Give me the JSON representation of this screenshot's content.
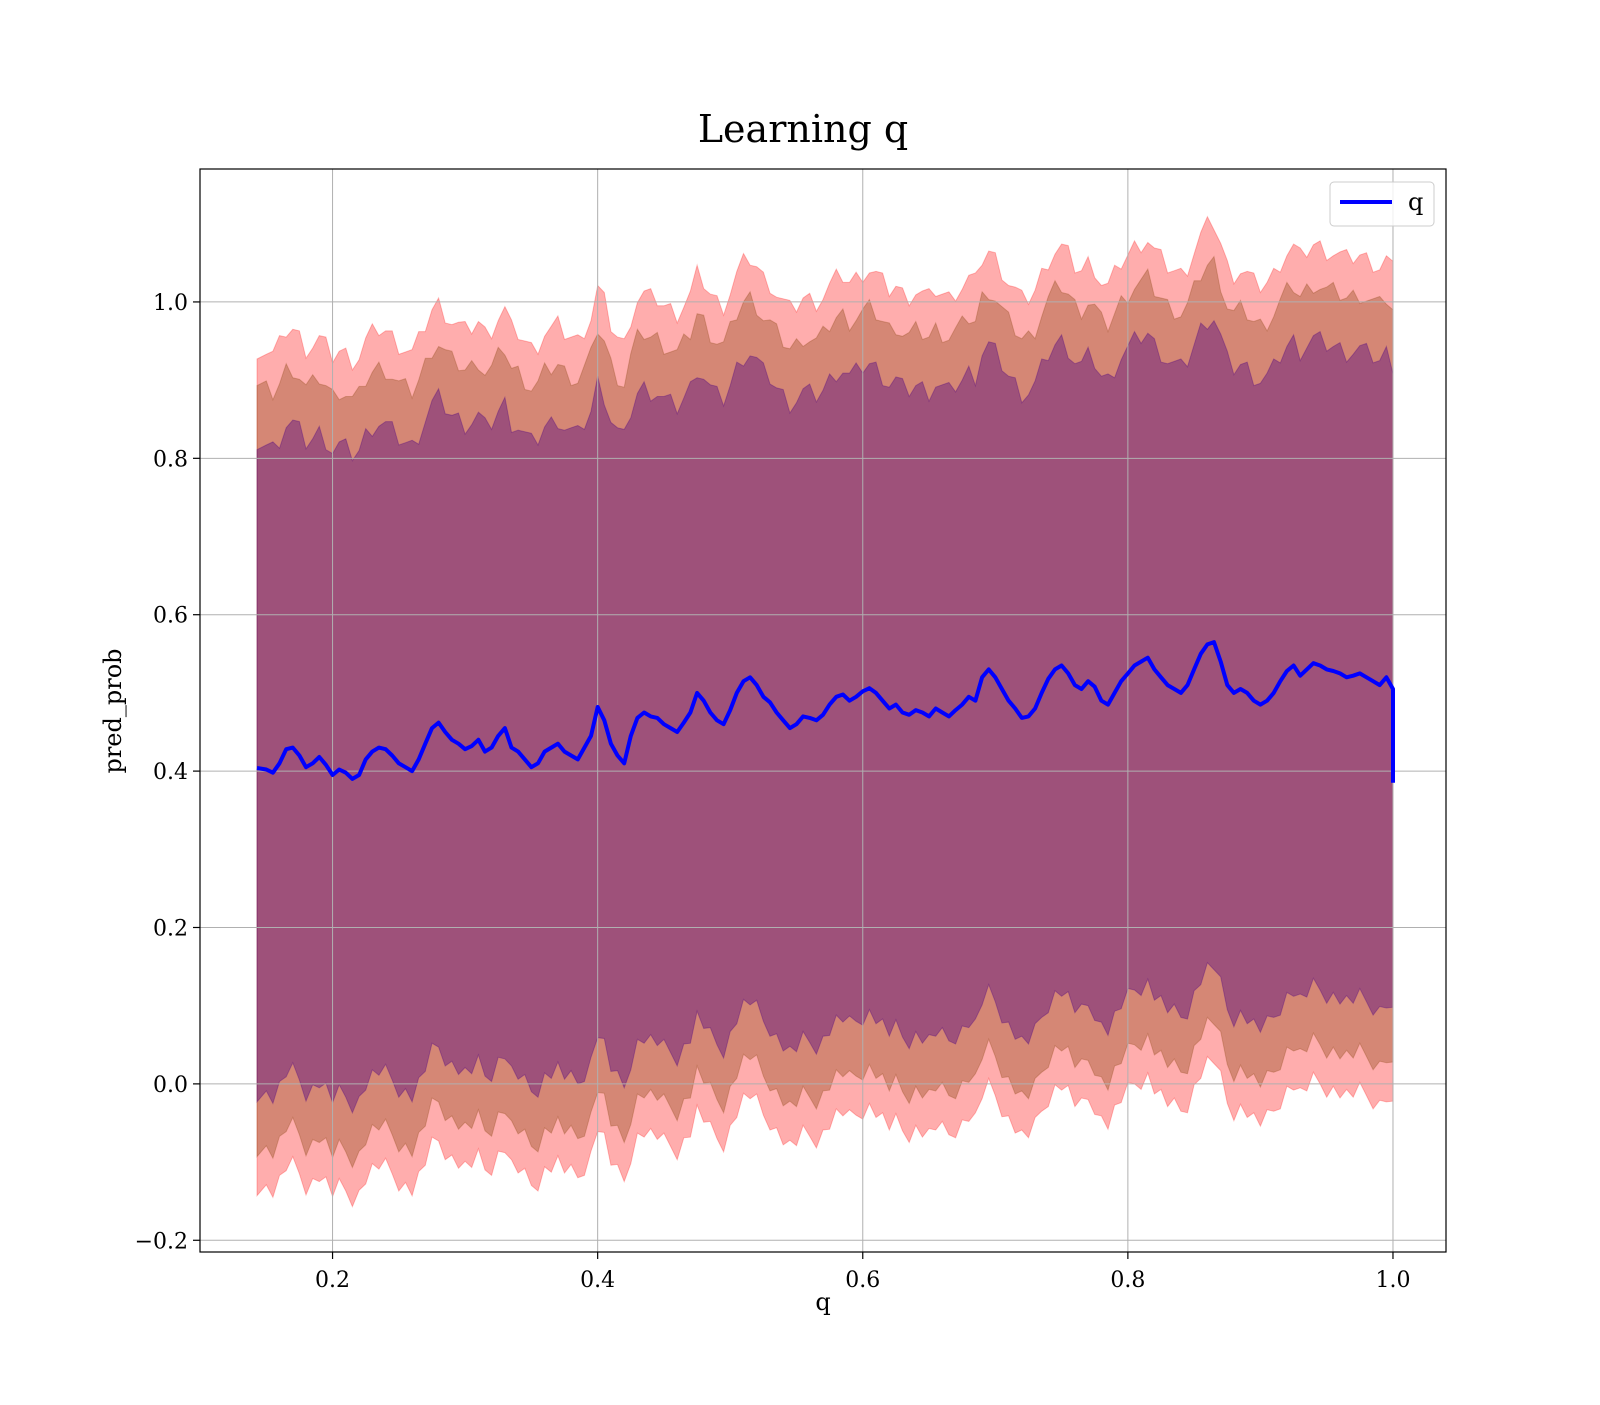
{
  "chart_data": {
    "type": "line",
    "title": "Learning q",
    "xlabel": "q",
    "ylabel": "pred_prob",
    "xlim": [
      0.1,
      1.04
    ],
    "ylim": [
      -0.215,
      1.17
    ],
    "xticks": [
      0.2,
      0.4,
      0.6,
      0.8,
      1.0
    ],
    "xtick_labels": [
      "0.2",
      "0.4",
      "0.6",
      "0.8",
      "1.0"
    ],
    "yticks": [
      -0.2,
      0.0,
      0.2,
      0.4,
      0.6,
      0.8,
      1.0
    ],
    "ytick_labels": [
      "−0.2",
      "0.0",
      "0.2",
      "0.4",
      "0.6",
      "0.8",
      "1.0"
    ],
    "grid": true,
    "legend": {
      "position": "top-right",
      "entries": [
        "q"
      ]
    },
    "series": [
      {
        "name": "q",
        "color": "#0000ff",
        "x": [
          0.143,
          0.15,
          0.155,
          0.16,
          0.165,
          0.17,
          0.175,
          0.18,
          0.185,
          0.19,
          0.195,
          0.2,
          0.205,
          0.21,
          0.215,
          0.22,
          0.225,
          0.23,
          0.235,
          0.24,
          0.245,
          0.25,
          0.255,
          0.26,
          0.265,
          0.27,
          0.275,
          0.28,
          0.285,
          0.29,
          0.295,
          0.3,
          0.305,
          0.31,
          0.315,
          0.32,
          0.325,
          0.33,
          0.335,
          0.34,
          0.345,
          0.35,
          0.355,
          0.36,
          0.365,
          0.37,
          0.375,
          0.38,
          0.385,
          0.39,
          0.395,
          0.4,
          0.405,
          0.41,
          0.415,
          0.42,
          0.425,
          0.43,
          0.435,
          0.44,
          0.445,
          0.45,
          0.455,
          0.46,
          0.465,
          0.47,
          0.475,
          0.48,
          0.485,
          0.49,
          0.495,
          0.5,
          0.505,
          0.51,
          0.515,
          0.52,
          0.525,
          0.53,
          0.535,
          0.54,
          0.545,
          0.55,
          0.555,
          0.56,
          0.565,
          0.57,
          0.575,
          0.58,
          0.585,
          0.59,
          0.595,
          0.6,
          0.605,
          0.61,
          0.615,
          0.62,
          0.625,
          0.63,
          0.635,
          0.64,
          0.645,
          0.65,
          0.655,
          0.66,
          0.665,
          0.67,
          0.675,
          0.68,
          0.685,
          0.69,
          0.695,
          0.7,
          0.705,
          0.71,
          0.715,
          0.72,
          0.725,
          0.73,
          0.735,
          0.74,
          0.745,
          0.75,
          0.755,
          0.76,
          0.765,
          0.77,
          0.775,
          0.78,
          0.785,
          0.79,
          0.795,
          0.8,
          0.805,
          0.81,
          0.815,
          0.82,
          0.825,
          0.83,
          0.835,
          0.84,
          0.845,
          0.85,
          0.855,
          0.86,
          0.865,
          0.87,
          0.875,
          0.88,
          0.885,
          0.89,
          0.895,
          0.9,
          0.905,
          0.91,
          0.915,
          0.92,
          0.925,
          0.93,
          0.935,
          0.94,
          0.945,
          0.95,
          0.955,
          0.96,
          0.965,
          0.97,
          0.975,
          0.98,
          0.985,
          0.99,
          0.995,
          1.0,
          1.0
        ],
        "y": [
          0.404,
          0.402,
          0.398,
          0.41,
          0.428,
          0.43,
          0.42,
          0.405,
          0.41,
          0.418,
          0.408,
          0.395,
          0.402,
          0.398,
          0.39,
          0.395,
          0.415,
          0.425,
          0.43,
          0.428,
          0.42,
          0.41,
          0.405,
          0.4,
          0.415,
          0.435,
          0.455,
          0.462,
          0.45,
          0.44,
          0.435,
          0.428,
          0.432,
          0.44,
          0.425,
          0.43,
          0.445,
          0.455,
          0.43,
          0.425,
          0.415,
          0.405,
          0.41,
          0.425,
          0.43,
          0.435,
          0.425,
          0.42,
          0.415,
          0.43,
          0.445,
          0.482,
          0.465,
          0.435,
          0.42,
          0.41,
          0.445,
          0.468,
          0.475,
          0.47,
          0.468,
          0.46,
          0.455,
          0.45,
          0.462,
          0.475,
          0.5,
          0.49,
          0.475,
          0.465,
          0.46,
          0.478,
          0.5,
          0.515,
          0.52,
          0.51,
          0.495,
          0.488,
          0.475,
          0.465,
          0.455,
          0.46,
          0.47,
          0.468,
          0.465,
          0.472,
          0.485,
          0.495,
          0.498,
          0.49,
          0.495,
          0.502,
          0.506,
          0.5,
          0.49,
          0.48,
          0.485,
          0.475,
          0.472,
          0.478,
          0.475,
          0.47,
          0.48,
          0.475,
          0.47,
          0.478,
          0.485,
          0.495,
          0.49,
          0.52,
          0.53,
          0.52,
          0.505,
          0.49,
          0.48,
          0.468,
          0.47,
          0.48,
          0.5,
          0.518,
          0.53,
          0.535,
          0.525,
          0.51,
          0.505,
          0.515,
          0.508,
          0.49,
          0.485,
          0.5,
          0.515,
          0.525,
          0.535,
          0.54,
          0.545,
          0.53,
          0.52,
          0.51,
          0.505,
          0.5,
          0.51,
          0.53,
          0.55,
          0.562,
          0.565,
          0.54,
          0.51,
          0.5,
          0.505,
          0.5,
          0.49,
          0.485,
          0.49,
          0.5,
          0.515,
          0.528,
          0.535,
          0.522,
          0.53,
          0.538,
          0.535,
          0.53,
          0.528,
          0.525,
          0.52,
          0.522,
          0.525,
          0.52,
          0.515,
          0.51,
          0.52,
          0.505,
          0.385
        ]
      }
    ],
    "bands": [
      {
        "color": "#ff0000",
        "opacity": 0.32,
        "offset": 0.535
      },
      {
        "color": "#8b4513",
        "opacity": 0.36,
        "offset": 0.485
      },
      {
        "color": "#4b0082",
        "opacity": 0.4,
        "offset": 0.415
      }
    ]
  }
}
